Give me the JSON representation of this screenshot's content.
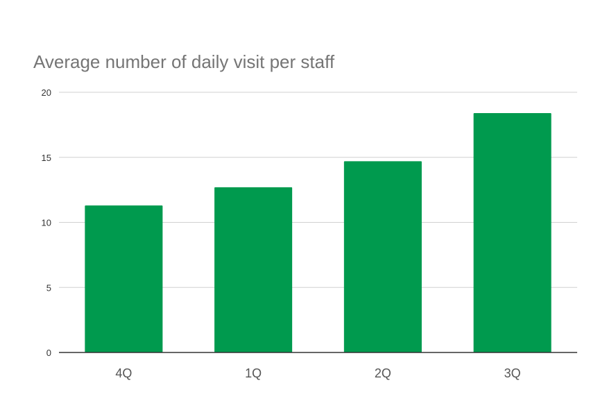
{
  "chart_data": {
    "type": "bar",
    "title": "Average number of daily visit per staff",
    "categories": [
      "4Q",
      "1Q",
      "2Q",
      "3Q"
    ],
    "values": [
      11.3,
      12.7,
      14.7,
      18.4
    ],
    "ylim": [
      0,
      20
    ],
    "yticks": [
      0,
      5,
      10,
      15,
      20
    ],
    "grid": true,
    "bar_color": "#009a4e"
  }
}
